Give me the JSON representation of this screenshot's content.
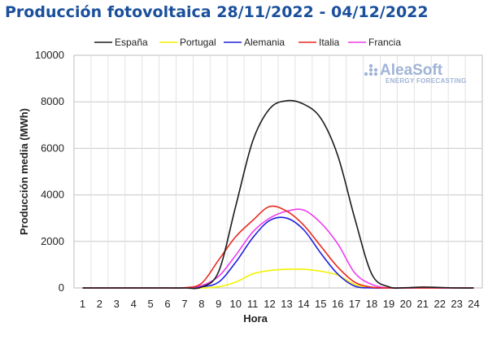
{
  "chart_data": {
    "type": "line",
    "title": "Producción fotovoltaica 28/11/2022 - 04/12/2022",
    "xlabel": "Hora",
    "ylabel": "Producción media (MWh)",
    "x": [
      1,
      2,
      3,
      4,
      5,
      6,
      7,
      8,
      9,
      10,
      11,
      12,
      13,
      14,
      15,
      16,
      17,
      18,
      19,
      20,
      21,
      22,
      23,
      24
    ],
    "x_range": [
      1,
      24
    ],
    "ylim": [
      0,
      10000
    ],
    "yticks": [
      0,
      2000,
      4000,
      6000,
      8000,
      10000
    ],
    "grid": true,
    "legend_position": "top",
    "series": [
      {
        "name": "España",
        "color": "#1a1a1a",
        "values": [
          0,
          0,
          0,
          0,
          0,
          0,
          0,
          40,
          700,
          3500,
          6300,
          7700,
          8050,
          7900,
          7300,
          5700,
          3000,
          600,
          50,
          10,
          40,
          20,
          0,
          0
        ]
      },
      {
        "name": "Portugal",
        "color": "#f2f200",
        "values": [
          0,
          0,
          0,
          0,
          0,
          0,
          0,
          0,
          50,
          250,
          600,
          750,
          800,
          800,
          720,
          550,
          150,
          20,
          0,
          0,
          0,
          0,
          0,
          0
        ]
      },
      {
        "name": "Alemania",
        "color": "#1f1fe0",
        "values": [
          0,
          0,
          0,
          0,
          0,
          0,
          0,
          50,
          250,
          1100,
          2150,
          2900,
          3000,
          2500,
          1500,
          600,
          80,
          0,
          0,
          0,
          0,
          0,
          0,
          0
        ]
      },
      {
        "name": "Italia",
        "color": "#e8281e",
        "values": [
          0,
          0,
          0,
          0,
          0,
          0,
          10,
          200,
          1200,
          2200,
          2900,
          3500,
          3300,
          2700,
          1800,
          900,
          250,
          30,
          0,
          0,
          0,
          0,
          0,
          0
        ]
      },
      {
        "name": "Francia",
        "color": "#f03cf0",
        "values": [
          0,
          0,
          0,
          0,
          0,
          0,
          0,
          100,
          500,
          1400,
          2400,
          3000,
          3300,
          3350,
          2800,
          1900,
          650,
          150,
          0,
          0,
          0,
          0,
          0,
          0
        ]
      }
    ]
  },
  "logo": {
    "name": "AleaSoft",
    "tagline": "ENERGY FORECASTING"
  }
}
